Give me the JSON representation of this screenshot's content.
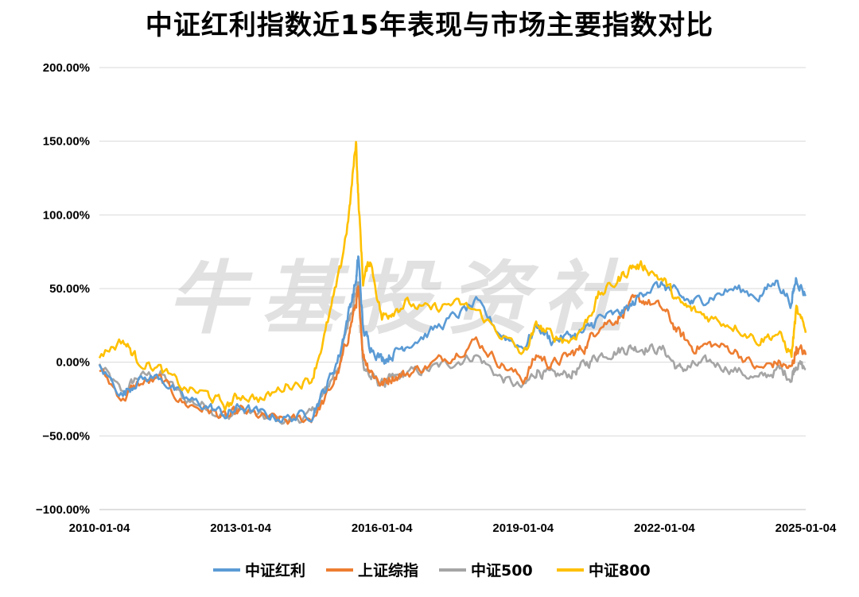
{
  "watermark": "牛基投资社",
  "chart_data": {
    "type": "line",
    "title": "中证红利指数近15年表现与市场主要指数对比",
    "xlabel": "",
    "ylabel": "",
    "ylim": [
      -100,
      200
    ],
    "yticks": [
      "200.00%",
      "150.00%",
      "100.00%",
      "50.00%",
      "0.00%",
      "−50.00%",
      "−100.00%"
    ],
    "ytick_values": [
      200,
      150,
      100,
      50,
      0,
      -50,
      -100
    ],
    "x_ticks": [
      "2010-01-04",
      "2013-01-04",
      "2016-01-04",
      "2019-01-04",
      "2022-01-04",
      "2025-01-04"
    ],
    "xlim": [
      2010.0,
      2025.0
    ],
    "grid": "horizontal",
    "legend_position": "bottom",
    "x": [
      2010.0,
      2010.5,
      2010.8,
      2011.3,
      2011.8,
      2012.3,
      2012.7,
      2013.0,
      2013.5,
      2014.0,
      2014.5,
      2014.8,
      2015.1,
      2015.3,
      2015.45,
      2015.5,
      2015.6,
      2015.75,
      2016.0,
      2016.2,
      2016.5,
      2017.0,
      2017.5,
      2018.0,
      2018.5,
      2019.0,
      2019.3,
      2019.6,
      2020.0,
      2020.3,
      2020.6,
      2021.0,
      2021.3,
      2021.6,
      2022.0,
      2022.3,
      2022.6,
      2023.0,
      2023.5,
      2024.0,
      2024.4,
      2024.7,
      2024.8,
      2025.0
    ],
    "series": [
      {
        "name": "中证红利",
        "color": "#5b9bd5",
        "values": [
          -3,
          -22,
          -12,
          -10,
          -25,
          -30,
          -36,
          -30,
          -36,
          -38,
          -35,
          -18,
          5,
          35,
          55,
          72,
          22,
          12,
          2,
          5,
          12,
          20,
          30,
          40,
          20,
          10,
          25,
          15,
          18,
          20,
          30,
          32,
          38,
          50,
          52,
          45,
          40,
          45,
          50,
          45,
          55,
          40,
          58,
          45
        ]
      },
      {
        "name": "上证综指",
        "color": "#ed7d31",
        "values": [
          -5,
          -25,
          -15,
          -12,
          -28,
          -32,
          -38,
          -33,
          -38,
          -40,
          -38,
          -25,
          -5,
          20,
          40,
          48,
          5,
          -5,
          -15,
          -10,
          -8,
          -2,
          5,
          15,
          0,
          -12,
          5,
          -2,
          5,
          10,
          25,
          30,
          40,
          42,
          35,
          20,
          10,
          12,
          8,
          -5,
          0,
          -5,
          10,
          5
        ]
      },
      {
        "name": "中证500",
        "color": "#a5a5a5",
        "values": [
          -2,
          -22,
          -10,
          -8,
          -25,
          -30,
          -38,
          -32,
          -38,
          -40,
          -36,
          -20,
          0,
          30,
          48,
          52,
          0,
          -10,
          -15,
          -12,
          -8,
          -5,
          0,
          5,
          -10,
          -18,
          -5,
          -10,
          -8,
          -2,
          5,
          8,
          10,
          10,
          8,
          -5,
          -3,
          0,
          -5,
          -12,
          -5,
          -10,
          0,
          -5
        ]
      },
      {
        "name": "中证800",
        "color": "#ffc000",
        "values": [
          5,
          15,
          2,
          -5,
          -18,
          -22,
          -30,
          -22,
          -25,
          -15,
          -12,
          20,
          60,
          100,
          150,
          110,
          55,
          70,
          30,
          35,
          40,
          35,
          40,
          35,
          20,
          5,
          25,
          18,
          15,
          25,
          45,
          55,
          65,
          65,
          55,
          40,
          35,
          30,
          25,
          15,
          20,
          5,
          35,
          20
        ]
      }
    ]
  }
}
